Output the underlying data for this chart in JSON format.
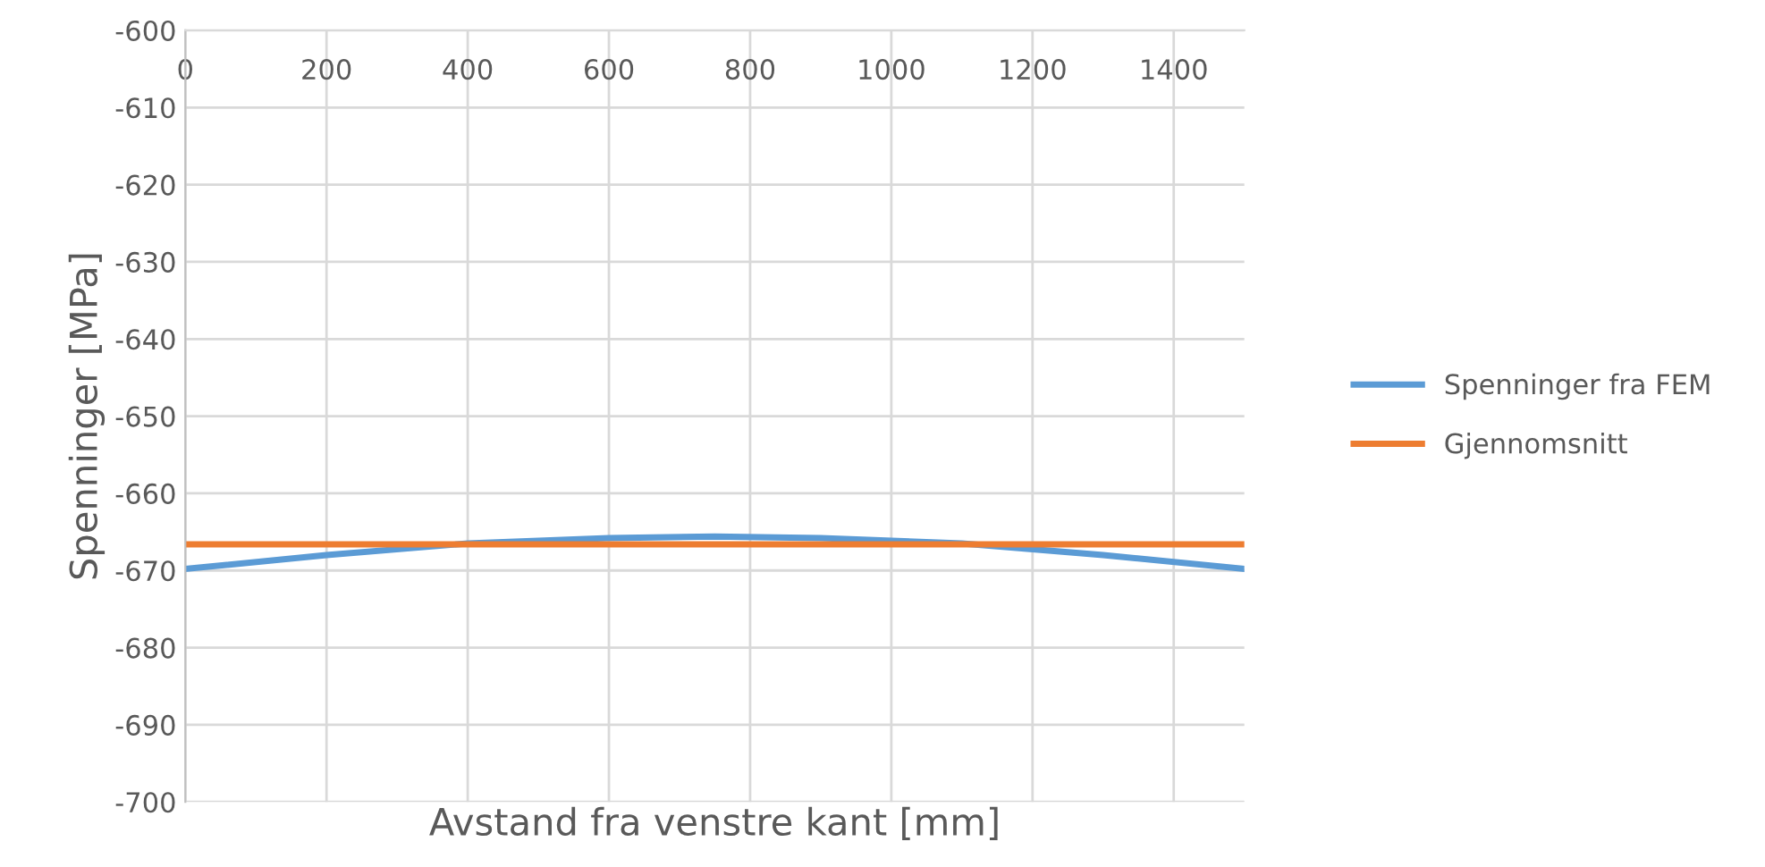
{
  "chart_data": {
    "type": "line",
    "xlabel": "Avstand fra venstre kant [mm]",
    "ylabel": "Spenninger [MPa]",
    "xlim": [
      0,
      1500
    ],
    "xticks": [
      0,
      200,
      400,
      600,
      800,
      1000,
      1200,
      1400
    ],
    "ylim": [
      -700,
      -600
    ],
    "yticks": [
      -700,
      -690,
      -680,
      -670,
      -660,
      -650,
      -640,
      -630,
      -620,
      -610,
      -600
    ],
    "grid": true,
    "legend": "right",
    "marker": "none",
    "line_style": "solid",
    "series": [
      {
        "name": "Spenninger fra FEM",
        "color": "#5b9bd5",
        "x": [
          0,
          200,
          400,
          600,
          750,
          900,
          1100,
          1300,
          1500
        ],
        "values": [
          -669.8,
          -668.0,
          -666.5,
          -665.8,
          -665.6,
          -665.8,
          -666.5,
          -668.0,
          -669.8
        ]
      },
      {
        "name": "Gjennomsnitt",
        "color": "#ed7d31",
        "x": [
          0,
          1500
        ],
        "values": [
          -666.6,
          -666.6
        ]
      }
    ]
  }
}
